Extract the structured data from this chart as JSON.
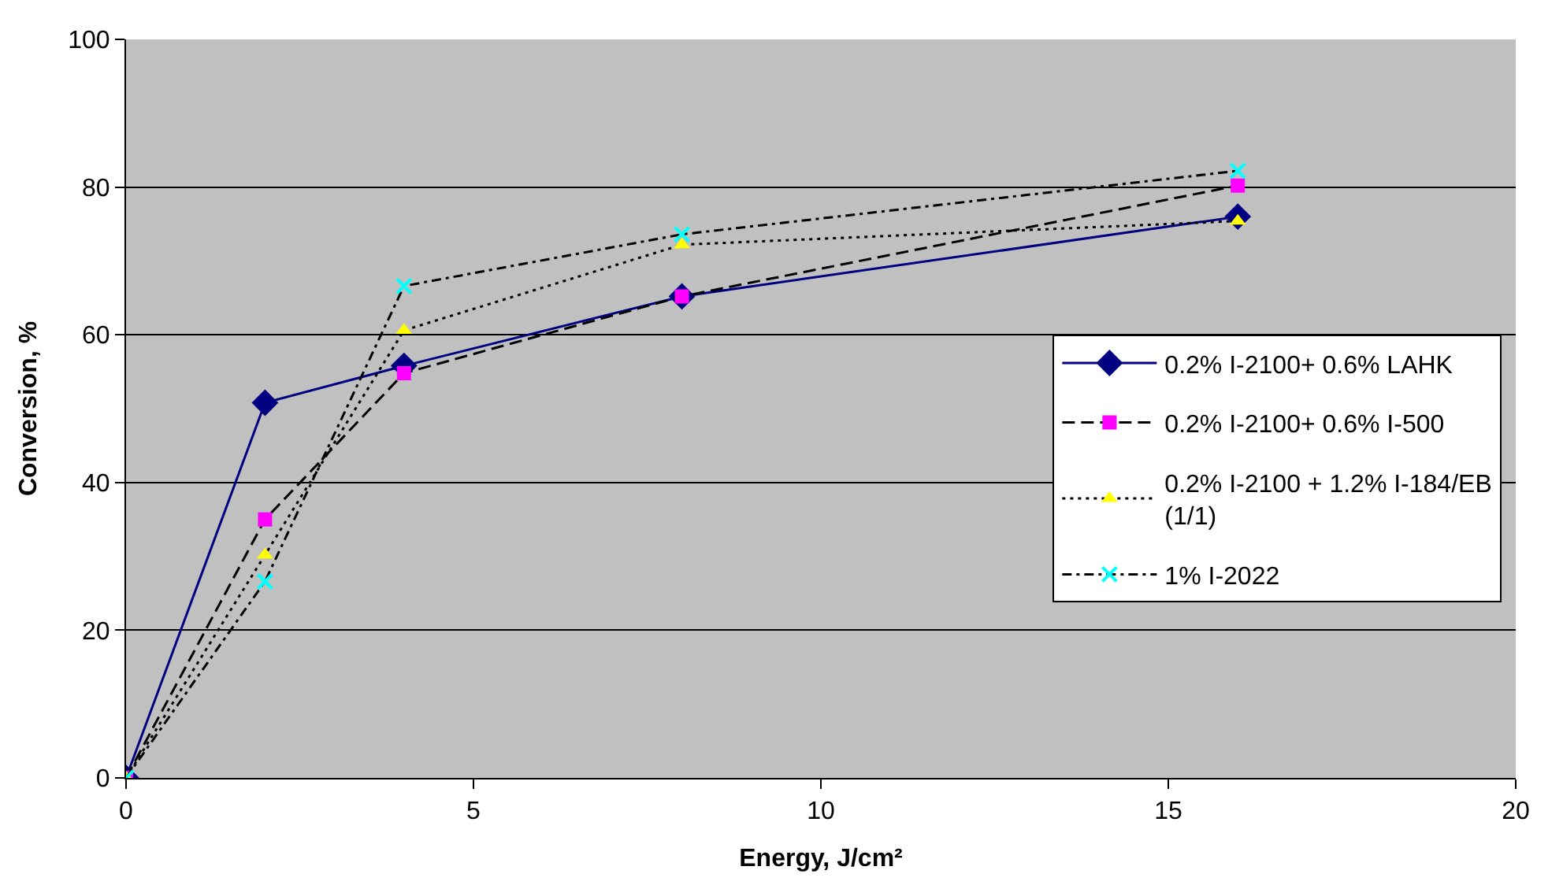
{
  "chart_data": {
    "type": "line",
    "xlabel": "Energy, J/cm²",
    "ylabel": "Conversion, %",
    "x": [
      0,
      2,
      4,
      8,
      16
    ],
    "series": [
      {
        "name": "0.2% I-2100+ 0.6% LAHK",
        "color": "#000080",
        "values": [
          0,
          50.8,
          55.8,
          65.2,
          76
        ],
        "marker": "diamond",
        "line_style": "solid"
      },
      {
        "name": "0.2% I-2100+ 0.6% I-500",
        "color": "#ff00ff",
        "values": [
          0,
          35,
          54.8,
          65.2,
          80.2
        ],
        "marker": "square",
        "line_style": "dashed"
      },
      {
        "name": "0.2% I-2100 + 1.2% I-184/EB (1/1)",
        "color": "#ffff00",
        "values": [
          0,
          30.2,
          60.6,
          72.2,
          75.4
        ],
        "marker": "triangle",
        "line_style": "dotted"
      },
      {
        "name": "1% I-2022",
        "color": "#00ffff",
        "values": [
          0,
          26.6,
          66.6,
          73.6,
          82.2
        ],
        "marker": "cross",
        "line_style": "dashdot"
      }
    ],
    "xlim": [
      0,
      20
    ],
    "xticks": [
      0,
      5,
      10,
      15,
      20
    ],
    "ylim": [
      0,
      100
    ],
    "yticks": [
      0,
      20,
      40,
      60,
      80,
      100
    ],
    "grid": "y",
    "legend": "right"
  }
}
